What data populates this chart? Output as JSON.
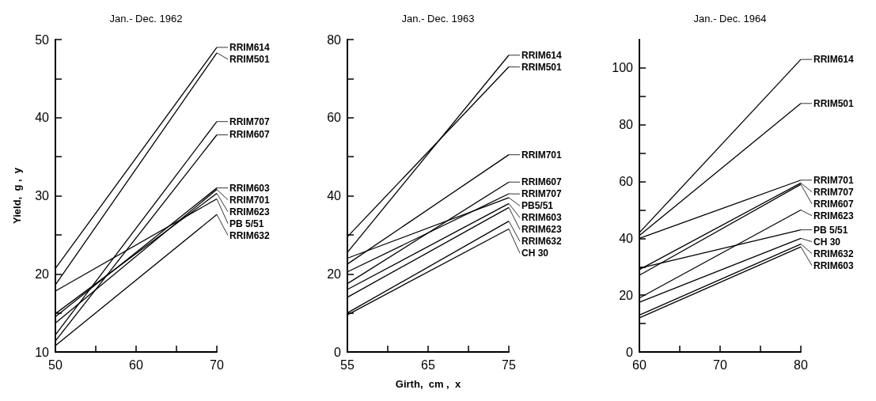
{
  "chart_data": [
    {
      "type": "line",
      "title": "Jan.- Dec. 1962",
      "ylabel": "Yield,  g ,  y",
      "xlim": [
        50,
        70
      ],
      "xticks": [
        50,
        {
          "value": 55,
          "label": null
        },
        60,
        {
          "value": 65,
          "label": null
        },
        70
      ],
      "ylim": [
        10,
        50
      ],
      "yticks": [
        10,
        {
          "value": 15,
          "label": null
        },
        20,
        {
          "value": 25,
          "label": null
        },
        30,
        {
          "value": 35,
          "label": null
        },
        40,
        {
          "value": 45,
          "label": null
        },
        50
      ],
      "grid": false,
      "legend": "right",
      "series": [
        {
          "name": "RRIM614",
          "color": "#000000",
          "x": [
            50,
            70
          ],
          "values": [
            20.7,
            49
          ]
        },
        {
          "name": "RRIM501",
          "color": "#000000",
          "x": [
            50,
            70
          ],
          "values": [
            18.6,
            48.3
          ]
        },
        {
          "name": "RRIM707",
          "color": "#000000",
          "x": [
            50,
            70
          ],
          "values": [
            12.2,
            39.5
          ]
        },
        {
          "name": "RRIM607",
          "color": "#000000",
          "x": [
            50,
            70
          ],
          "values": [
            11.4,
            37.8
          ]
        },
        {
          "name": "RRIM603",
          "color": "#000000",
          "x": [
            50,
            70
          ],
          "values": [
            14.5,
            31
          ]
        },
        {
          "name": "RRIM701",
          "color": "#000000",
          "x": [
            50,
            70
          ],
          "values": [
            13.7,
            30.8
          ]
        },
        {
          "name": "RRIM623",
          "color": "#000000",
          "x": [
            50,
            70
          ],
          "values": [
            14.9,
            30.3
          ]
        },
        {
          "name": "PB 5/51",
          "color": "#000000",
          "x": [
            50,
            70
          ],
          "values": [
            17.8,
            29.6
          ]
        },
        {
          "name": "RRIM632",
          "color": "#000000",
          "x": [
            50,
            70
          ],
          "values": [
            10.8,
            27.6
          ]
        }
      ]
    },
    {
      "type": "line",
      "title": "Jan.- Dec. 1963",
      "xlabel": "Girth,  cm ,  x",
      "xlim": [
        55,
        75
      ],
      "xticks": [
        55,
        {
          "value": 60,
          "label": null
        },
        65,
        {
          "value": 70,
          "label": null
        },
        75
      ],
      "ylim": [
        0,
        80
      ],
      "yticks": [
        0,
        {
          "value": 10,
          "label": null
        },
        20,
        {
          "value": 30,
          "label": null
        },
        40,
        {
          "value": 50,
          "label": null
        },
        60,
        {
          "value": 70,
          "label": null
        },
        80
      ],
      "grid": false,
      "legend": "right",
      "series": [
        {
          "name": "RRIM614",
          "color": "#000000",
          "x": [
            55,
            75
          ],
          "values": [
            25.5,
            76
          ]
        },
        {
          "name": "RRIM501",
          "color": "#000000",
          "x": [
            55,
            75
          ],
          "values": [
            29.5,
            73
          ]
        },
        {
          "name": "RRIM701",
          "color": "#000000",
          "x": [
            55,
            75
          ],
          "values": [
            22.5,
            50.5
          ]
        },
        {
          "name": "RRIM607",
          "color": "#000000",
          "x": [
            55,
            75
          ],
          "values": [
            17.5,
            43.5
          ]
        },
        {
          "name": "RRIM707",
          "color": "#000000",
          "x": [
            55,
            75
          ],
          "values": [
            20.5,
            40.5
          ]
        },
        {
          "name": "PB5/51",
          "color": "#000000",
          "x": [
            55,
            75
          ],
          "values": [
            24,
            39.5
          ]
        },
        {
          "name": "RRIM603",
          "color": "#000000",
          "x": [
            55,
            75
          ],
          "values": [
            16,
            38
          ]
        },
        {
          "name": "RRIM623",
          "color": "#000000",
          "x": [
            55,
            75
          ],
          "values": [
            14,
            37
          ]
        },
        {
          "name": "RRIM632",
          "color": "#000000",
          "x": [
            55,
            75
          ],
          "values": [
            10,
            33.5
          ]
        },
        {
          "name": "CH 30",
          "color": "#000000",
          "x": [
            55,
            75
          ],
          "values": [
            9.5,
            31.5
          ]
        }
      ]
    },
    {
      "type": "line",
      "title": "Jan.- Dec. 1964",
      "xlim": [
        60,
        80
      ],
      "xticks": [
        60,
        {
          "value": 65,
          "label": null
        },
        70,
        {
          "value": 75,
          "label": null
        },
        80
      ],
      "ylim": [
        0,
        110
      ],
      "yticks": [
        0,
        {
          "value": 10,
          "label": null
        },
        20,
        {
          "value": 30,
          "label": null
        },
        40,
        {
          "value": 50,
          "label": null
        },
        60,
        {
          "value": 70,
          "label": null
        },
        80,
        {
          "value": 90,
          "label": null
        },
        100
      ],
      "grid": false,
      "legend": "right",
      "series": [
        {
          "name": "RRIM614",
          "color": "#000000",
          "x": [
            60,
            80
          ],
          "values": [
            42,
            103
          ]
        },
        {
          "name": "RRIM501",
          "color": "#000000",
          "x": [
            60,
            80
          ],
          "values": [
            41,
            87.5
          ]
        },
        {
          "name": "RRIM701",
          "color": "#000000",
          "x": [
            60,
            80
          ],
          "values": [
            40,
            60.5
          ]
        },
        {
          "name": "RRIM707",
          "color": "#000000",
          "x": [
            60,
            80
          ],
          "values": [
            29,
            59.5
          ]
        },
        {
          "name": "RRIM607",
          "color": "#000000",
          "x": [
            60,
            80
          ],
          "values": [
            27,
            59
          ]
        },
        {
          "name": "RRIM623",
          "color": "#000000",
          "x": [
            60,
            80
          ],
          "values": [
            19,
            50
          ]
        },
        {
          "name": "PB 5/51",
          "color": "#000000",
          "x": [
            60,
            80
          ],
          "values": [
            29.5,
            43
          ]
        },
        {
          "name": "CH 30",
          "color": "#000000",
          "x": [
            60,
            80
          ],
          "values": [
            17.5,
            40
          ]
        },
        {
          "name": "RRIM632",
          "color": "#000000",
          "x": [
            60,
            80
          ],
          "values": [
            13,
            38
          ]
        },
        {
          "name": "RRIM603",
          "color": "#000000",
          "x": [
            60,
            80
          ],
          "values": [
            12,
            37
          ]
        }
      ]
    }
  ]
}
